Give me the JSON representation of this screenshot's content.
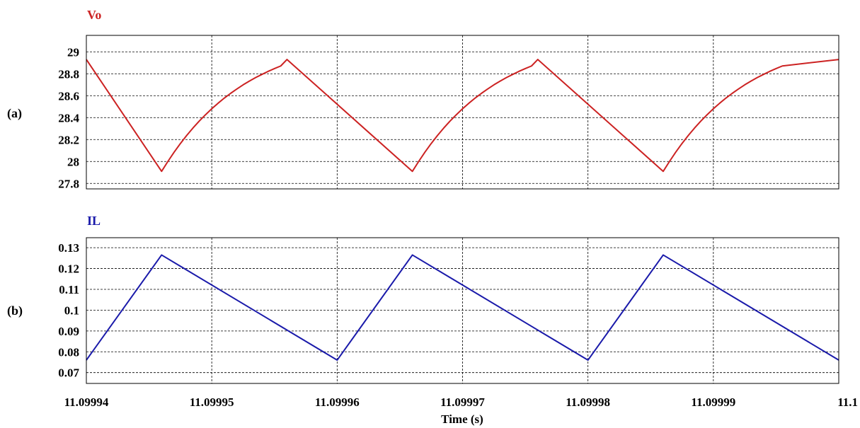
{
  "colors": {
    "vo": "#cc2222",
    "il": "#1a1aaa"
  },
  "chart_data": [
    {
      "type": "line",
      "panel_label": "(a)",
      "title": "Vo",
      "ylim": [
        27.75,
        29.15
      ],
      "yticks": [
        "27.8",
        "28",
        "28.2",
        "28.4",
        "28.6",
        "28.8",
        "29"
      ],
      "xlim": [
        11.09994,
        11.1
      ],
      "grid": true,
      "series": [
        {
          "name": "Vo",
          "x": [
            11.09994,
            11.099946,
            11.0999465,
            11.099947,
            11.0999475,
            11.099948,
            11.0999485,
            11.099949,
            11.0999495,
            11.09995,
            11.0999505,
            11.099951,
            11.0999515,
            11.099952,
            11.0999525,
            11.099953,
            11.0999535,
            11.099954,
            11.0999545,
            11.099955,
            11.0999555,
            11.099956,
            11.099966,
            11.0999665,
            11.099967,
            11.0999675,
            11.099968,
            11.0999685,
            11.099969,
            11.0999695,
            11.09997,
            11.0999705,
            11.099971,
            11.0999715,
            11.099972,
            11.0999725,
            11.099973,
            11.0999735,
            11.099974,
            11.0999745,
            11.099975,
            11.0999755,
            11.099976,
            11.099986,
            11.0999865,
            11.099987,
            11.0999875,
            11.099988,
            11.0999885,
            11.099989,
            11.0999895,
            11.09999,
            11.0999905,
            11.099991,
            11.0999915,
            11.099992,
            11.0999925,
            11.099993,
            11.0999935,
            11.099994,
            11.0999945,
            11.099995,
            11.0999955,
            11.1
          ],
          "y": [
            28.93,
            27.91,
            28.0,
            28.085,
            28.164,
            28.237,
            28.305,
            28.368,
            28.426,
            28.481,
            28.531,
            28.578,
            28.621,
            28.661,
            28.699,
            28.733,
            28.765,
            28.794,
            28.822,
            28.847,
            28.871,
            28.93,
            27.91,
            28.0,
            28.085,
            28.164,
            28.237,
            28.305,
            28.368,
            28.426,
            28.481,
            28.531,
            28.578,
            28.621,
            28.661,
            28.699,
            28.733,
            28.765,
            28.794,
            28.822,
            28.847,
            28.871,
            28.93,
            27.91,
            28.0,
            28.085,
            28.164,
            28.237,
            28.305,
            28.368,
            28.426,
            28.481,
            28.531,
            28.578,
            28.621,
            28.661,
            28.699,
            28.733,
            28.765,
            28.794,
            28.822,
            28.847,
            28.871,
            28.93
          ]
        }
      ]
    },
    {
      "type": "line",
      "panel_label": "(b)",
      "title": "IL",
      "ylim": [
        0.0648,
        0.1348
      ],
      "yticks": [
        "0.07",
        "0.08",
        "0.09",
        "0.1",
        "0.11",
        "0.12",
        "0.13"
      ],
      "xlim": [
        11.09994,
        11.1
      ],
      "grid": true,
      "series": [
        {
          "name": "IL",
          "x": [
            11.09994,
            11.099946,
            11.09996,
            11.099966,
            11.09998,
            11.099986,
            11.1
          ],
          "y": [
            0.076,
            0.1265,
            0.076,
            0.1265,
            0.076,
            0.1265,
            0.076
          ]
        }
      ]
    }
  ],
  "x_axis": {
    "ticks": [
      "11.09994",
      "11.09995",
      "11.09996",
      "11.09997",
      "11.09998",
      "11.09999",
      "11.1"
    ],
    "tick_values": [
      11.09994,
      11.09995,
      11.09996,
      11.09997,
      11.09998,
      11.09999,
      11.1
    ],
    "label": "Time (s)"
  }
}
